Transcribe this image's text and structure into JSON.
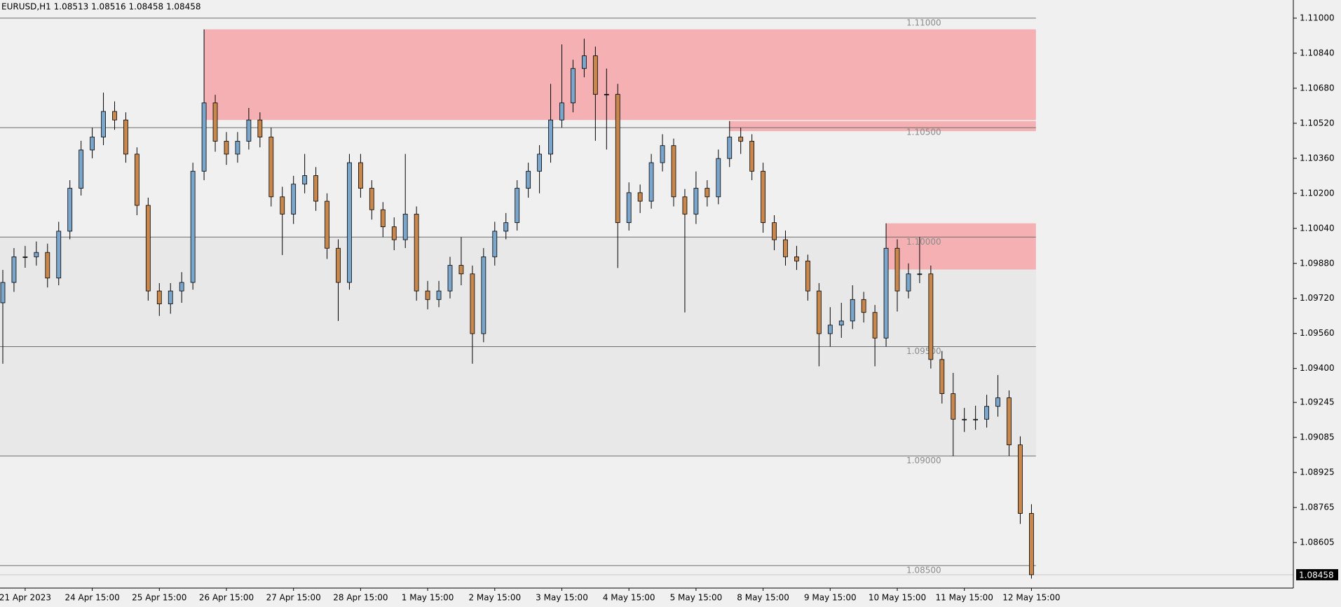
{
  "chart_data": {
    "type": "candlestick",
    "title": "EURUSD,H1  1.08513 1.08516 1.08458 1.08458",
    "categories": [
      null,
      null,
      "21 Apr 2023",
      null,
      null,
      null,
      null,
      null,
      "24 Apr 15:00",
      null,
      null,
      null,
      null,
      null,
      "25 Apr 15:00",
      null,
      null,
      null,
      null,
      null,
      "26 Apr 15:00",
      null,
      null,
      null,
      null,
      null,
      "27 Apr 15:00",
      null,
      null,
      null,
      null,
      null,
      "28 Apr 15:00",
      null,
      null,
      null,
      null,
      null,
      "1 May 15:00",
      null,
      null,
      null,
      null,
      null,
      "2 May 15:00",
      null,
      null,
      null,
      null,
      null,
      "3 May 15:00",
      null,
      null,
      null,
      null,
      null,
      "4 May 15:00",
      null,
      null,
      null,
      null,
      null,
      "5 May 15:00",
      null,
      null,
      null,
      null,
      null,
      "8 May 15:00",
      null,
      null,
      null,
      null,
      null,
      "9 May 15:00",
      null,
      null,
      null,
      null,
      null,
      "10 May 15:00",
      null,
      null,
      null,
      null,
      null,
      "11 May 15:00",
      null,
      null,
      null,
      null,
      null,
      "12 May 15:00"
    ],
    "open": [
      1.097,
      1.09793,
      1.0991,
      1.0991,
      1.0993,
      1.09813,
      1.10027,
      1.10223,
      1.10398,
      1.10457,
      1.10574,
      1.10535,
      1.10379,
      1.10145,
      1.09754,
      1.09695,
      1.09754,
      1.09793,
      1.10301,
      1.10613,
      1.10438,
      1.10379,
      1.10438,
      1.10535,
      1.10457,
      1.10184,
      1.10105,
      1.10242,
      1.10281,
      1.10164,
      1.09949,
      1.09793,
      1.1034,
      1.10223,
      1.10125,
      1.10047,
      1.09988,
      1.10105,
      1.09754,
      1.09715,
      1.09754,
      1.09871,
      1.09832,
      1.09559,
      1.0991,
      1.10027,
      1.10066,
      1.10223,
      1.10301,
      1.10379,
      1.10535,
      1.10613,
      1.1077,
      1.10828,
      1.10652,
      1.10652,
      1.10066,
      1.10203,
      1.10164,
      1.1034,
      1.10418,
      1.10184,
      1.10105,
      1.10223,
      1.10184,
      1.10359,
      1.10457,
      1.10438,
      1.10301,
      1.10066,
      1.09988,
      1.0991,
      1.09891,
      1.09754,
      1.09559,
      1.09598,
      1.09617,
      1.09715,
      1.09656,
      1.09539,
      1.09949,
      1.09754,
      1.09832,
      1.09832,
      1.09441,
      1.09285,
      1.09168,
      1.09168,
      1.09168,
      1.09227,
      1.09266,
      1.09051,
      1.08738
    ],
    "high": [
      1.0985,
      1.0995,
      1.0996,
      1.0998,
      1.0997,
      1.1007,
      1.1026,
      1.1044,
      1.105,
      1.1066,
      1.1062,
      1.1057,
      1.1041,
      1.1018,
      1.0979,
      1.0979,
      1.0984,
      1.1034,
      1.10949,
      1.1065,
      1.1048,
      1.1048,
      1.1059,
      1.1057,
      1.105,
      1.1023,
      1.1028,
      1.1038,
      1.1032,
      1.102,
      1.0999,
      1.1038,
      1.1038,
      1.1026,
      1.1016,
      1.1009,
      1.1038,
      1.1014,
      1.098,
      1.098,
      1.0991,
      1.1,
      1.0987,
      1.0995,
      1.1007,
      1.1011,
      1.1026,
      1.1034,
      1.1042,
      1.107,
      1.1088,
      1.1081,
      1.10906,
      1.1087,
      1.1077,
      1.107,
      1.1025,
      1.1024,
      1.1038,
      1.1047,
      1.1045,
      1.1022,
      1.103,
      1.1026,
      1.104,
      1.1053,
      1.105,
      1.1047,
      1.1034,
      1.101,
      1.1003,
      1.0996,
      1.0992,
      1.0979,
      1.0968,
      1.097,
      1.0978,
      1.0975,
      1.0969,
      1.10063,
      1.0999,
      1.0988,
      1.1,
      1.0987,
      1.0948,
      1.0938,
      1.0922,
      1.0923,
      1.0928,
      1.0937,
      1.093,
      1.0909,
      1.0878
    ],
    "low": [
      1.09422,
      1.0975,
      1.0986,
      1.0987,
      1.0977,
      1.0978,
      1.0999,
      1.1019,
      1.1036,
      1.1042,
      1.1049,
      1.1034,
      1.101,
      1.0971,
      1.0964,
      1.0965,
      1.097,
      1.0976,
      1.1026,
      1.1039,
      1.1033,
      1.1034,
      1.104,
      1.1041,
      1.1014,
      1.09918,
      1.1006,
      1.102,
      1.1012,
      1.099,
      1.09617,
      1.0976,
      1.1018,
      1.1008,
      1.1,
      1.0994,
      1.0995,
      1.0971,
      1.0967,
      1.0968,
      1.0972,
      1.0978,
      1.09422,
      1.0952,
      1.0987,
      1.0999,
      1.1003,
      1.1018,
      1.102,
      1.1034,
      1.105,
      1.1057,
      1.1073,
      1.1044,
      1.104,
      1.09859,
      1.1003,
      1.1011,
      1.1013,
      1.103,
      1.1014,
      1.09656,
      1.1006,
      1.1014,
      1.1015,
      1.1032,
      1.1038,
      1.1026,
      1.1002,
      1.0994,
      1.0987,
      1.0985,
      1.0971,
      1.0941,
      1.095,
      1.0954,
      1.0958,
      1.0961,
      1.0941,
      1.095,
      1.0966,
      1.0972,
      1.0979,
      1.094,
      1.0924,
      1.09,
      1.0911,
      1.0912,
      1.0913,
      1.0918,
      1.09,
      1.0869,
      1.0844
    ],
    "close": [
      1.09793,
      1.0991,
      1.0991,
      1.0993,
      1.09813,
      1.10027,
      1.10223,
      1.10398,
      1.10457,
      1.10574,
      1.10535,
      1.10379,
      1.10145,
      1.09754,
      1.09695,
      1.09754,
      1.09793,
      1.10301,
      1.10613,
      1.10438,
      1.10379,
      1.10438,
      1.10535,
      1.10457,
      1.10184,
      1.10105,
      1.10242,
      1.10281,
      1.10164,
      1.09949,
      1.09793,
      1.1034,
      1.10223,
      1.10125,
      1.10047,
      1.09988,
      1.10105,
      1.09754,
      1.09715,
      1.09754,
      1.09871,
      1.09832,
      1.09559,
      1.0991,
      1.10027,
      1.10066,
      1.10223,
      1.10301,
      1.10379,
      1.10535,
      1.10613,
      1.1077,
      1.10828,
      1.10652,
      1.10652,
      1.10066,
      1.10203,
      1.10164,
      1.1034,
      1.10418,
      1.10184,
      1.10105,
      1.10223,
      1.10184,
      1.10359,
      1.10457,
      1.10438,
      1.10301,
      1.10066,
      1.09988,
      1.0991,
      1.09891,
      1.09754,
      1.09559,
      1.09598,
      1.09617,
      1.09715,
      1.09656,
      1.09539,
      1.09949,
      1.09754,
      1.09832,
      1.09832,
      1.09441,
      1.09285,
      1.09168,
      1.09168,
      1.09168,
      1.09227,
      1.09266,
      1.09051,
      1.08738,
      1.08458
    ],
    "up_color": "#7aa6cc",
    "down_color": "#c8874c",
    "wick_color": "#000000",
    "ylim": [
      1.08397,
      1.11083
    ],
    "yticks": [
      {
        "value": 1.11,
        "label": "1.11000"
      },
      {
        "value": 1.1084,
        "label": "1.10840"
      },
      {
        "value": 1.1068,
        "label": "1.10680"
      },
      {
        "value": 1.1052,
        "label": "1.10520"
      },
      {
        "value": 1.1036,
        "label": "1.10360"
      },
      {
        "value": 1.102,
        "label": "1.10200"
      },
      {
        "value": 1.1004,
        "label": "1.10040"
      },
      {
        "value": 1.0988,
        "label": "1.09880"
      },
      {
        "value": 1.0972,
        "label": "1.09720"
      },
      {
        "value": 1.0956,
        "label": "1.09560"
      },
      {
        "value": 1.094,
        "label": "1.09400"
      },
      1.09245,
      1.09085,
      1.08925,
      1.08765,
      1.08605
    ],
    "levels": [
      {
        "value": 1.11,
        "label": "1.11000"
      },
      {
        "value": 1.105,
        "label": "1.10500"
      },
      {
        "value": 1.1,
        "label": "1.10000"
      },
      {
        "value": 1.095,
        "label": "1.09500"
      },
      {
        "value": 1.09,
        "label": "1.09000"
      },
      {
        "value": 1.085,
        "label": "1.08500"
      }
    ],
    "shaded_range": {
      "top": 1.1,
      "bottom": 1.09,
      "color": "#e8e8e8"
    },
    "zones": [
      {
        "top": 1.10949,
        "bottom": 1.10535,
        "color": "#f4b0b2"
      },
      {
        "top": 1.1053,
        "bottom": 1.10484,
        "color": "#f4b0b2"
      },
      {
        "top": 1.10063,
        "bottom": 1.09852,
        "color": "#f4b0b2"
      }
    ],
    "current_price": 1.08458
  }
}
